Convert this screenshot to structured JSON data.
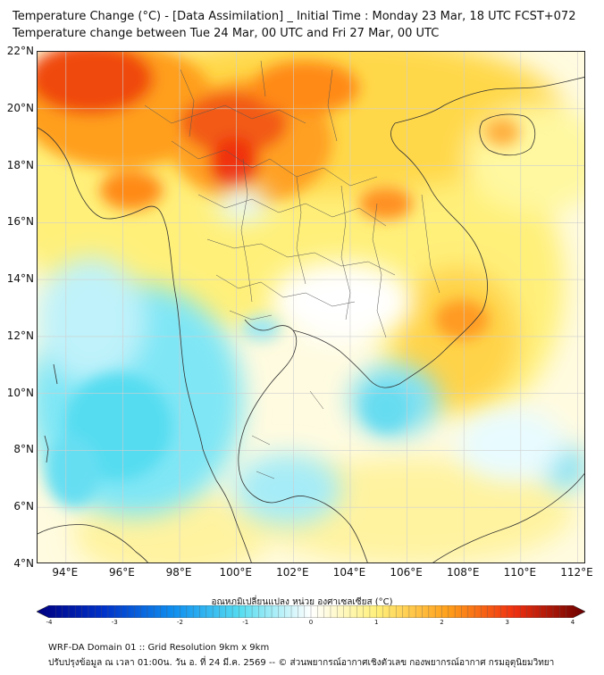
{
  "header": {
    "title_line1": "Temperature Change (°C) - [Data Assimilation] _ Initial Time : Monday 23 Mar, 18 UTC FCST+072",
    "title_line2": "Temperature change between Tue 24 Mar, 00 UTC and Fri 27 Mar, 00 UTC"
  },
  "map": {
    "lat_labels": [
      "22°N",
      "20°N",
      "18°N",
      "16°N",
      "14°N",
      "12°N",
      "10°N",
      "8°N",
      "6°N",
      "4°N"
    ],
    "lon_labels": [
      "94°E",
      "96°E",
      "98°E",
      "100°E",
      "102°E",
      "104°E",
      "106°E",
      "108°E",
      "110°E",
      "112°E"
    ],
    "lat_range": [
      4,
      22
    ],
    "lon_range": [
      93,
      112.3
    ]
  },
  "colorbar": {
    "title": "อุณหภูมิเปลี่ยนแปลง หน่วย องศาเซลเซียส (°C)",
    "min": -4,
    "max": 4,
    "ticks": [
      "-4",
      "-3",
      "-2",
      "-1",
      "0",
      "1",
      "2",
      "3",
      "4"
    ]
  },
  "footer": {
    "line1": "WRF-DA Domain 01 :: Grid Resolution 9km x 9km",
    "line2": "ปรับปรุงข้อมูล ณ เวลา 01:00น. วัน อ. ที่ 24 มี.ค. 2569 -- © ส่วนพยากรณ์อากาศเชิงตัวเลข กองพยากรณ์อากาศ กรมอุตุนิยมวิทยา"
  },
  "colors": {
    "deep_blue": "#000080",
    "cyan": "#55dcf0",
    "white": "#ffffff",
    "yellow": "#fff07a",
    "orange": "#ff9f1a",
    "red": "#f03010",
    "dark_red": "#6a0000"
  }
}
